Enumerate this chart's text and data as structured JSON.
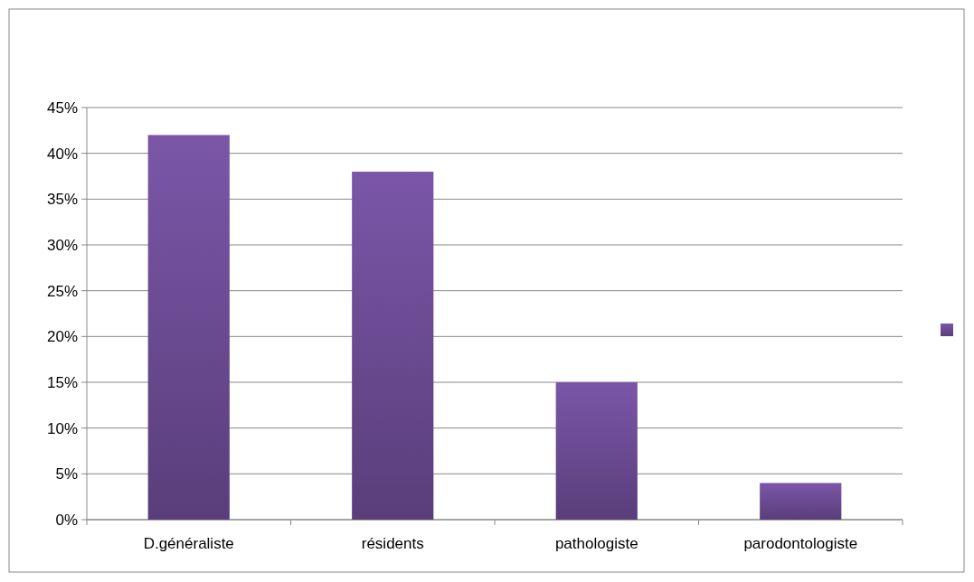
{
  "chart_data": {
    "type": "bar",
    "categories": [
      "D.généraliste",
      "résidents",
      "pathologiste",
      "parodontologiste"
    ],
    "series": [
      {
        "color": "#7b56a8",
        "values": [
          42,
          38,
          15,
          4
        ]
      }
    ],
    "ylim": [
      0,
      45
    ],
    "yticks": [
      {
        "value": 0,
        "label": "0%"
      },
      {
        "value": 5,
        "label": "5%"
      },
      {
        "value": 10,
        "label": "10%"
      },
      {
        "value": 15,
        "label": "15%"
      },
      {
        "value": 20,
        "label": "20%"
      },
      {
        "value": 25,
        "label": "25%"
      },
      {
        "value": 30,
        "label": "30%"
      },
      {
        "value": 35,
        "label": "35%"
      },
      {
        "value": 40,
        "label": "40%"
      },
      {
        "value": 45,
        "label": "45%"
      }
    ],
    "grid": "y"
  }
}
